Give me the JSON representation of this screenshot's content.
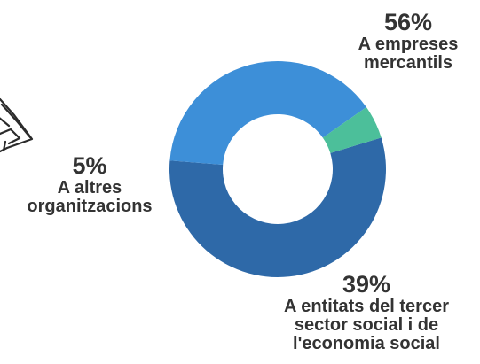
{
  "chart_data": {
    "type": "pie",
    "title": "",
    "donut": true,
    "slices": [
      {
        "label": "A empreses\nmercantils",
        "value": 56,
        "value_label": "56%",
        "color": "#2e69a8"
      },
      {
        "label": "A entitats del tercer\nsector social i de\nl'economia social",
        "value": 39,
        "value_label": "39%",
        "color": "#3d8fd8"
      },
      {
        "label": "A altres\norganitzacions",
        "value": 5,
        "value_label": "5%",
        "color": "#4cbf9a"
      }
    ],
    "legend": "none",
    "decoration": "pencil-sketch-icon"
  }
}
